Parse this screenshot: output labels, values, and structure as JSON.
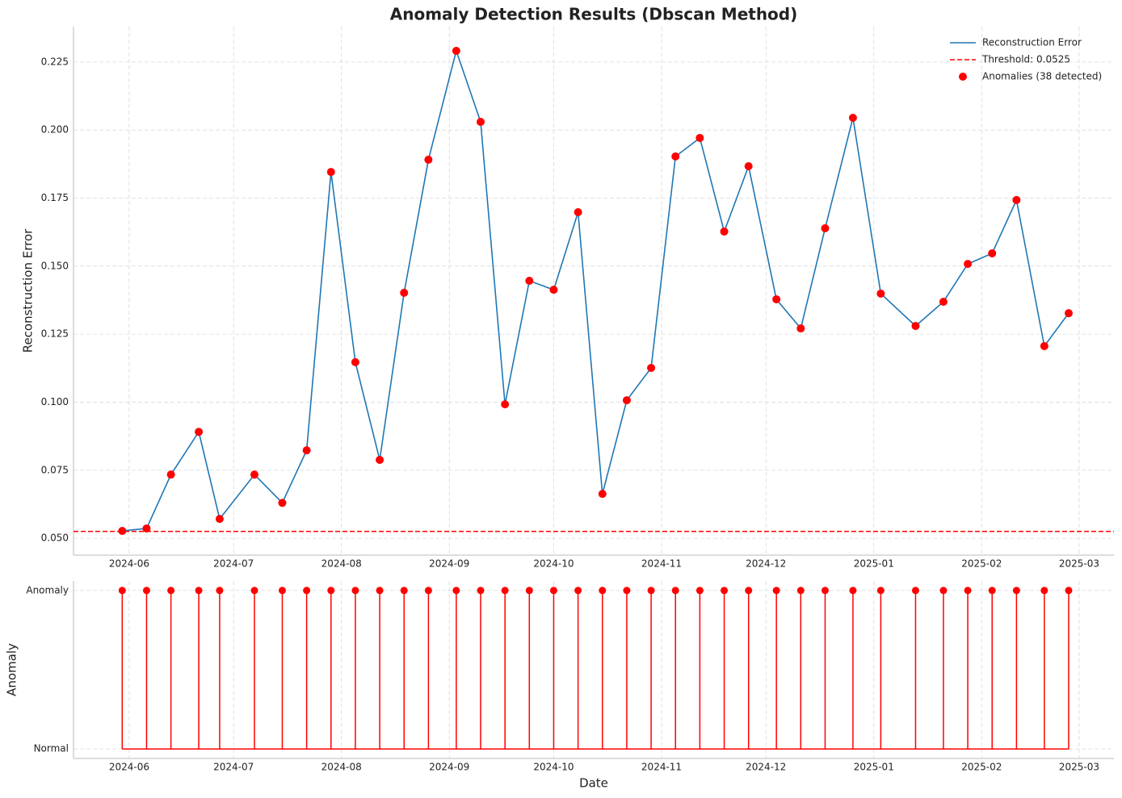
{
  "chart_data": [
    {
      "type": "line",
      "title": "Anomaly Detection Results (Dbscan Method)",
      "ylabel": "Reconstruction Error",
      "x": [
        "2024-05-30",
        "2024-06-06",
        "2024-06-13",
        "2024-06-21",
        "2024-06-27",
        "2024-07-07",
        "2024-07-15",
        "2024-07-22",
        "2024-07-29",
        "2024-08-05",
        "2024-08-12",
        "2024-08-19",
        "2024-08-26",
        "2024-09-03",
        "2024-09-10",
        "2024-09-17",
        "2024-09-24",
        "2024-10-01",
        "2024-10-08",
        "2024-10-15",
        "2024-10-22",
        "2024-10-29",
        "2024-11-05",
        "2024-11-12",
        "2024-11-19",
        "2024-11-26",
        "2024-12-04",
        "2024-12-11",
        "2024-12-18",
        "2024-12-26",
        "2025-01-03",
        "2025-01-13",
        "2025-01-21",
        "2025-01-28",
        "2025-02-04",
        "2025-02-11",
        "2025-02-19",
        "2025-02-26"
      ],
      "series": [
        {
          "name": "Reconstruction Error",
          "style": "line",
          "color": "#1f77b4",
          "values": [
            0.0527,
            0.0536,
            0.0734,
            0.0891,
            0.0571,
            0.0734,
            0.063,
            0.0823,
            0.1846,
            0.1147,
            0.0788,
            0.1402,
            0.1891,
            0.2291,
            0.203,
            0.0992,
            0.1446,
            0.1413,
            0.1698,
            0.0663,
            0.1007,
            0.1126,
            0.1903,
            0.1971,
            0.1627,
            0.1867,
            0.1378,
            0.1271,
            0.1639,
            0.2045,
            0.1399,
            0.128,
            0.1369,
            0.1508,
            0.1547,
            0.1743,
            0.1206,
            0.1327
          ]
        },
        {
          "name": "Anomalies (38 detected)",
          "style": "markers",
          "color": "#ff0000",
          "values": [
            0.0527,
            0.0536,
            0.0734,
            0.0891,
            0.0571,
            0.0734,
            0.063,
            0.0823,
            0.1846,
            0.1147,
            0.0788,
            0.1402,
            0.1891,
            0.2291,
            0.203,
            0.0992,
            0.1446,
            0.1413,
            0.1698,
            0.0663,
            0.1007,
            0.1126,
            0.1903,
            0.1971,
            0.1627,
            0.1867,
            0.1378,
            0.1271,
            0.1639,
            0.2045,
            0.1399,
            0.128,
            0.1369,
            0.1508,
            0.1547,
            0.1743,
            0.1206,
            0.1327
          ]
        }
      ],
      "threshold": {
        "name": "Threshold: 0.0525",
        "value": 0.0525,
        "color": "#ff0000"
      },
      "xlim": [
        "2024-05-16",
        "2025-03-11"
      ],
      "xticks": [
        "2024-06",
        "2024-07",
        "2024-08",
        "2024-09",
        "2024-10",
        "2024-11",
        "2024-12",
        "2025-01",
        "2025-02",
        "2025-03"
      ],
      "ylim": [
        0.0438,
        0.238
      ],
      "yticks": [
        {
          "value": 0.05,
          "label": "0.050"
        },
        {
          "value": 0.075,
          "label": "0.075"
        },
        {
          "value": 0.1,
          "label": "0.100"
        },
        {
          "value": 0.125,
          "label": "0.125"
        },
        {
          "value": 0.15,
          "label": "0.150"
        },
        {
          "value": 0.175,
          "label": "0.175"
        },
        {
          "value": 0.2,
          "label": "0.200"
        },
        {
          "value": 0.225,
          "label": "0.225"
        }
      ],
      "grid": true,
      "legend": "upper right"
    },
    {
      "type": "stem",
      "ylabel": "Anomaly",
      "xlabel": "Date",
      "color": "#ff0000",
      "x": [
        "2024-05-30",
        "2024-06-06",
        "2024-06-13",
        "2024-06-21",
        "2024-06-27",
        "2024-07-07",
        "2024-07-15",
        "2024-07-22",
        "2024-07-29",
        "2024-08-05",
        "2024-08-12",
        "2024-08-19",
        "2024-08-26",
        "2024-09-03",
        "2024-09-10",
        "2024-09-17",
        "2024-09-24",
        "2024-10-01",
        "2024-10-08",
        "2024-10-15",
        "2024-10-22",
        "2024-10-29",
        "2024-11-05",
        "2024-11-12",
        "2024-11-19",
        "2024-11-26",
        "2024-12-04",
        "2024-12-11",
        "2024-12-18",
        "2024-12-26",
        "2025-01-03",
        "2025-01-13",
        "2025-01-21",
        "2025-01-28",
        "2025-02-04",
        "2025-02-11",
        "2025-02-19",
        "2025-02-26"
      ],
      "values": [
        1,
        1,
        1,
        1,
        1,
        1,
        1,
        1,
        1,
        1,
        1,
        1,
        1,
        1,
        1,
        1,
        1,
        1,
        1,
        1,
        1,
        1,
        1,
        1,
        1,
        1,
        1,
        1,
        1,
        1,
        1,
        1,
        1,
        1,
        1,
        1,
        1,
        1
      ],
      "xlim": [
        "2024-05-16",
        "2025-03-11"
      ],
      "xticks": [
        "2024-06",
        "2024-07",
        "2024-08",
        "2024-09",
        "2024-10",
        "2024-11",
        "2024-12",
        "2025-01",
        "2025-02",
        "2025-03"
      ],
      "ylim": [
        -0.06,
        1.06
      ],
      "yticks": [
        {
          "value": 0,
          "label": "Normal"
        },
        {
          "value": 1,
          "label": "Anomaly"
        }
      ],
      "grid": true
    }
  ]
}
